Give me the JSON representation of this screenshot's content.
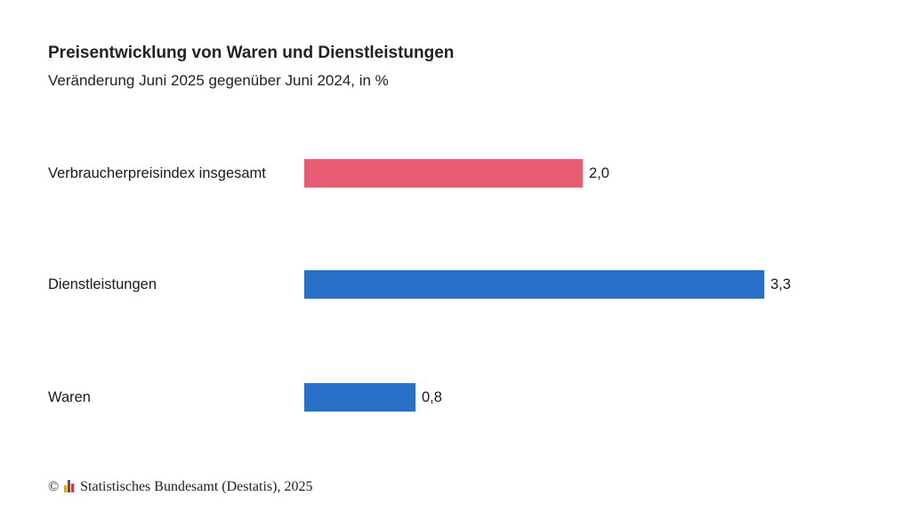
{
  "chart_data": {
    "type": "bar",
    "orientation": "horizontal",
    "title": "Preisentwicklung von Waren und Dienstleistungen",
    "subtitle": "Veränderung Juni 2025 gegenüber Juni 2024, in %",
    "categories": [
      "Verbraucherpreisindex insgesamt",
      "Dienstleistungen",
      "Waren"
    ],
    "values": [
      2.0,
      3.3,
      0.8
    ],
    "value_labels": [
      "2,0",
      "3,3",
      "0,8"
    ],
    "colors": [
      "#e85d73",
      "#2870c8",
      "#2870c8"
    ],
    "xlim": [
      0,
      3.3
    ],
    "grid": false
  },
  "footer": {
    "copyright_symbol": "©",
    "source": "Statistisches Bundesamt (Destatis), 2025"
  }
}
